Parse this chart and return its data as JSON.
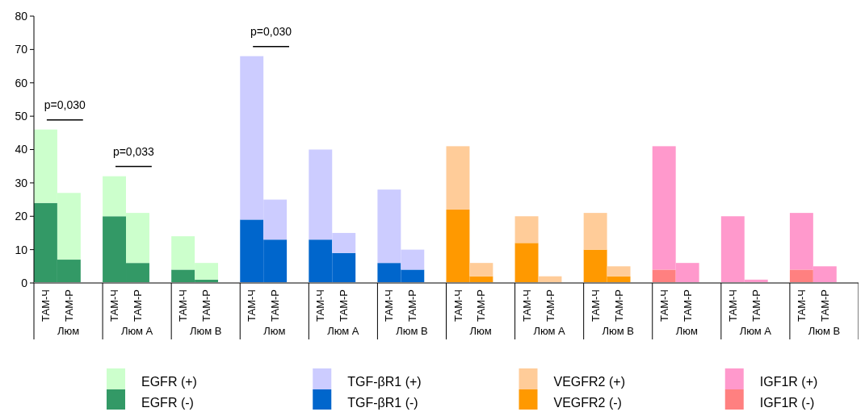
{
  "chart_data": {
    "type": "bar",
    "stacked": true,
    "categories": [
      "ТАМ-Ч",
      "ТАМ-Р",
      "ТАМ-Ч",
      "ТАМ-Р",
      "ТАМ-Ч",
      "ТАМ-Р",
      "ТАМ-Ч",
      "ТАМ-Р",
      "ТАМ-Ч",
      "ТАМ-Р",
      "ТАМ-Ч",
      "ТАМ-Р",
      "ТАМ-Ч",
      "ТАМ-Р",
      "ТАМ-Ч",
      "ТАМ-Р",
      "ТАМ-Ч",
      "ТАМ-Р",
      "ТАМ-Ч",
      "ТАМ-Р",
      "ТАМ-Ч",
      "ТАМ-Р",
      "ТАМ-Ч",
      "ТАМ-Р"
    ],
    "series": [
      {
        "name": "EGFR (-)",
        "color": "#339966",
        "values": [
          24,
          7,
          20,
          6,
          4,
          1,
          null,
          null,
          null,
          null,
          null,
          null,
          null,
          null,
          null,
          null,
          null,
          null,
          null,
          null,
          null,
          null,
          null,
          null
        ]
      },
      {
        "name": "EGFR (+)",
        "color": "#ccffcc",
        "values": [
          22,
          20,
          12,
          15,
          10,
          5,
          null,
          null,
          null,
          null,
          null,
          null,
          null,
          null,
          null,
          null,
          null,
          null,
          null,
          null,
          null,
          null,
          null,
          null
        ]
      },
      {
        "name": "TGF-βR1 (-)",
        "color": "#0066cc",
        "values": [
          null,
          null,
          null,
          null,
          null,
          null,
          19,
          13,
          13,
          9,
          6,
          4,
          null,
          null,
          null,
          null,
          null,
          null,
          null,
          null,
          null,
          null,
          null,
          null
        ]
      },
      {
        "name": "TGF-βR1 (+)",
        "color": "#ccccff",
        "values": [
          null,
          null,
          null,
          null,
          null,
          null,
          49,
          12,
          27,
          6,
          22,
          6,
          null,
          null,
          null,
          null,
          null,
          null,
          null,
          null,
          null,
          null,
          null,
          null
        ]
      },
      {
        "name": "VEGFR2 (-)",
        "color": "#ff9900",
        "values": [
          null,
          null,
          null,
          null,
          null,
          null,
          null,
          null,
          null,
          null,
          null,
          null,
          22,
          2,
          12,
          0,
          10,
          2,
          null,
          null,
          null,
          null,
          null,
          null
        ]
      },
      {
        "name": "VEGFR2 (+)",
        "color": "#ffcc99",
        "values": [
          null,
          null,
          null,
          null,
          null,
          null,
          null,
          null,
          null,
          null,
          null,
          null,
          19,
          4,
          8,
          2,
          11,
          3,
          null,
          null,
          null,
          null,
          null,
          null
        ]
      },
      {
        "name": "IGF1R (-)",
        "color": "#ff8080",
        "values": [
          null,
          null,
          null,
          null,
          null,
          null,
          null,
          null,
          null,
          null,
          null,
          null,
          null,
          null,
          null,
          null,
          null,
          null,
          4,
          0,
          0,
          0,
          4,
          0
        ]
      },
      {
        "name": "IGF1R (+)",
        "color": "#ff99cc",
        "values": [
          null,
          null,
          null,
          null,
          null,
          null,
          null,
          null,
          null,
          null,
          null,
          null,
          null,
          null,
          null,
          null,
          null,
          null,
          37,
          6,
          20,
          1,
          17,
          5
        ]
      }
    ],
    "ylim": [
      0,
      80
    ],
    "yticks": [
      0,
      10,
      20,
      30,
      40,
      50,
      60,
      70,
      80
    ],
    "legend": "bottom",
    "annotations": [
      "Люм",
      "Люм А",
      "Люм В",
      "Люм",
      "Люм А",
      "Люм В",
      "Люм",
      "Люм А",
      "Люм В",
      "Люм",
      "Люм А",
      "Люм В",
      "p=0,030",
      "p=0,033",
      "p=0,030"
    ]
  }
}
